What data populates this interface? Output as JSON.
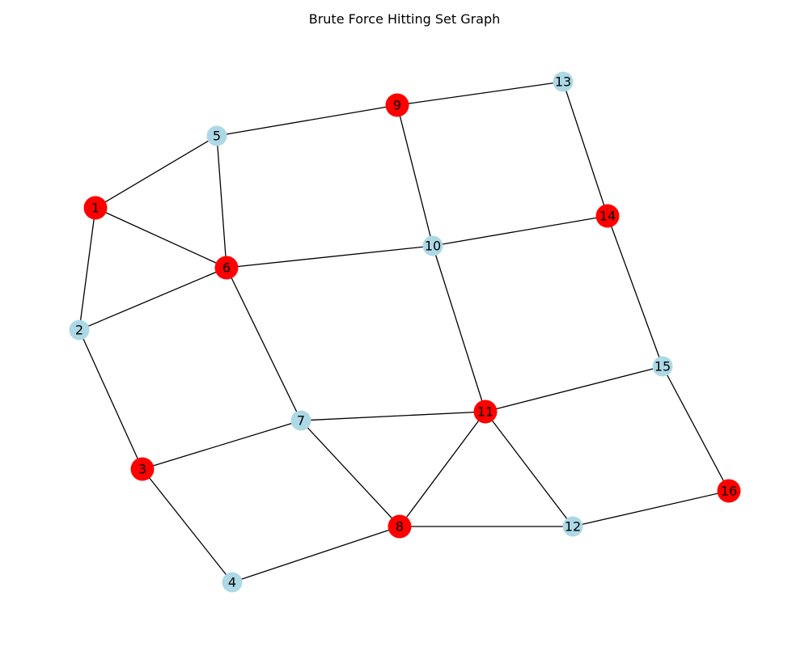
{
  "figure": {
    "title": "Brute Force Hitting Set Graph"
  },
  "colors": {
    "selected": "#ff0000",
    "unselected": "#add8e6",
    "edge": "#000000",
    "background": "#ffffff"
  },
  "graph": {
    "nodes": [
      {
        "id": "1",
        "selected": true
      },
      {
        "id": "2",
        "selected": false
      },
      {
        "id": "3",
        "selected": true
      },
      {
        "id": "4",
        "selected": false
      },
      {
        "id": "5",
        "selected": false
      },
      {
        "id": "6",
        "selected": true
      },
      {
        "id": "7",
        "selected": false
      },
      {
        "id": "8",
        "selected": true
      },
      {
        "id": "9",
        "selected": true
      },
      {
        "id": "10",
        "selected": false
      },
      {
        "id": "11",
        "selected": true
      },
      {
        "id": "12",
        "selected": false
      },
      {
        "id": "13",
        "selected": false
      },
      {
        "id": "14",
        "selected": true
      },
      {
        "id": "15",
        "selected": false
      },
      {
        "id": "16",
        "selected": true
      }
    ],
    "edges": [
      [
        "1",
        "2"
      ],
      [
        "1",
        "5"
      ],
      [
        "1",
        "6"
      ],
      [
        "2",
        "6"
      ],
      [
        "2",
        "3"
      ],
      [
        "3",
        "7"
      ],
      [
        "3",
        "4"
      ],
      [
        "4",
        "8"
      ],
      [
        "5",
        "6"
      ],
      [
        "5",
        "9"
      ],
      [
        "6",
        "10"
      ],
      [
        "6",
        "7"
      ],
      [
        "7",
        "11"
      ],
      [
        "7",
        "8"
      ],
      [
        "8",
        "11"
      ],
      [
        "8",
        "12"
      ],
      [
        "9",
        "13"
      ],
      [
        "9",
        "10"
      ],
      [
        "10",
        "14"
      ],
      [
        "10",
        "11"
      ],
      [
        "11",
        "15"
      ],
      [
        "11",
        "12"
      ],
      [
        "12",
        "16"
      ],
      [
        "13",
        "14"
      ],
      [
        "14",
        "15"
      ],
      [
        "15",
        "16"
      ]
    ]
  }
}
